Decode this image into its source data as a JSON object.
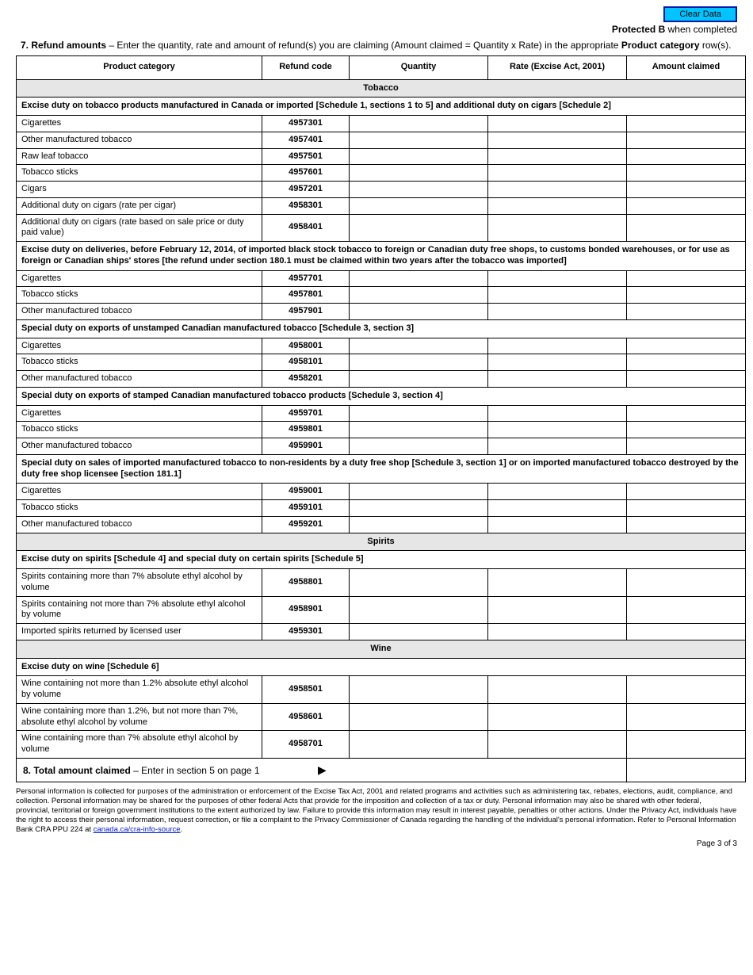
{
  "topbar": {
    "clear_label": "Clear Data"
  },
  "protected": {
    "prefix": "Protected B",
    "suffix": " when completed"
  },
  "intro": {
    "num": "7. Refund amounts",
    "dash": " – ",
    "text1": "Enter the quantity, rate and amount of refund(s) you are claiming (Amount claimed = Quantity x Rate) in the appropriate ",
    "bold2": "Product category",
    "text2": " row(s)."
  },
  "headers": {
    "product": "Product category",
    "code": "Refund code",
    "qty": "Quantity",
    "rate": "Rate (Excise Act, 2001)",
    "amt": "Amount claimed"
  },
  "sections": [
    {
      "title": "Tobacco",
      "groups": [
        {
          "sub": "Excise duty on tobacco products manufactured in Canada or imported [Schedule 1, sections 1 to 5] and additional duty on cigars [Schedule 2]",
          "rows": [
            {
              "product": "Cigarettes",
              "code": "4957301"
            },
            {
              "product": "Other manufactured tobacco",
              "code": "4957401"
            },
            {
              "product": "Raw leaf tobacco",
              "code": "4957501"
            },
            {
              "product": "Tobacco sticks",
              "code": "4957601"
            },
            {
              "product": "Cigars",
              "code": "4957201"
            },
            {
              "product": "Additional duty on cigars (rate per cigar)",
              "code": "4958301"
            },
            {
              "product": "Additional duty on cigars (rate based on sale price or duty paid value)",
              "code": "4958401"
            }
          ]
        },
        {
          "sub": "Excise duty on deliveries, before February 12, 2014, of imported black stock tobacco to foreign or Canadian duty free shops, to customs bonded warehouses, or for use as foreign or Canadian ships' stores [the refund under section 180.1 must be claimed within two years after the tobacco was imported]",
          "rows": [
            {
              "product": "Cigarettes",
              "code": "4957701"
            },
            {
              "product": "Tobacco sticks",
              "code": "4957801"
            },
            {
              "product": "Other manufactured tobacco",
              "code": "4957901"
            }
          ]
        },
        {
          "sub": "Special duty on exports of unstamped Canadian manufactured tobacco [Schedule 3, section 3]",
          "rows": [
            {
              "product": "Cigarettes",
              "code": "4958001"
            },
            {
              "product": "Tobacco sticks",
              "code": "4958101"
            },
            {
              "product": "Other manufactured tobacco",
              "code": "4958201"
            }
          ]
        },
        {
          "sub": "Special duty on exports of stamped Canadian manufactured tobacco products [Schedule 3, section 4]",
          "rows": [
            {
              "product": "Cigarettes",
              "code": "4959701"
            },
            {
              "product": "Tobacco sticks",
              "code": "4959801"
            },
            {
              "product": "Other manufactured tobacco",
              "code": "4959901"
            }
          ]
        },
        {
          "sub": "Special duty on sales of imported manufactured tobacco to non-residents by a duty free shop [Schedule 3, section 1] or on imported manufactured tobacco destroyed by the duty free shop licensee [section 181.1]",
          "rows": [
            {
              "product": "Cigarettes",
              "code": "4959001"
            },
            {
              "product": "Tobacco sticks",
              "code": "4959101"
            },
            {
              "product": "Other manufactured tobacco",
              "code": "4959201"
            }
          ]
        }
      ]
    },
    {
      "title": "Spirits",
      "groups": [
        {
          "sub": "Excise duty on spirits [Schedule 4] and special duty on certain spirits [Schedule 5]",
          "rows": [
            {
              "product": "Spirits containing more than 7% absolute ethyl alcohol by volume",
              "code": "4958801"
            },
            {
              "product": "Spirits containing not more than 7% absolute ethyl alcohol by volume",
              "code": "4958901"
            },
            {
              "product": "Imported spirits returned by licensed user",
              "code": "4959301"
            }
          ]
        }
      ]
    },
    {
      "title": "Wine",
      "groups": [
        {
          "sub": "Excise duty on wine [Schedule 6]",
          "rows": [
            {
              "product": "Wine containing not more than 1.2% absolute ethyl alcohol by volume",
              "code": "4958501"
            },
            {
              "product": "Wine containing more than 1.2%, but not more than 7%, absolute ethyl alcohol by volume",
              "code": "4958601"
            },
            {
              "product": "Wine containing more than 7% absolute ethyl alcohol by volume",
              "code": "4958701"
            }
          ]
        }
      ]
    }
  ],
  "total": {
    "num": "8. Total amount claimed",
    "dash": " – ",
    "text": "Enter in section 5 on page 1",
    "arrow": "▶"
  },
  "footer": {
    "text": "Personal information is collected for purposes of the administration or enforcement of the Excise Tax Act, 2001 and related programs and activities such as administering tax, rebates, elections, audit, compliance, and collection. Personal information may be shared for the purposes of other federal Acts that provide for the imposition and collection of a tax or duty. Personal information may also be shared with other federal, provincial, territorial or foreign government institutions to the extent authorized by law. Failure to provide this information may result in interest payable, penalties or other actions. Under the Privacy Act, individuals have the right to access their personal information, request correction, or file a complaint to the Privacy Commissioner of Canada regarding the handling of the individual's personal information. Refer to Personal Information Bank CRA PPU 224 at ",
    "link_label": "canada.ca/cra-info-source",
    "period": "."
  },
  "page": "Page 3 of 3"
}
